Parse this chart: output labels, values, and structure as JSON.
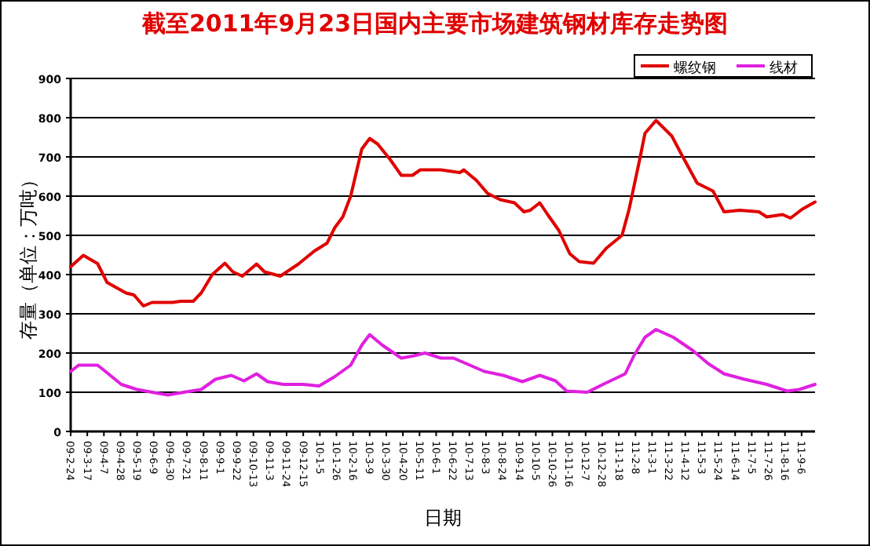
{
  "chart_data": {
    "type": "line",
    "title": "截至2011年9月23日国内主要市场建筑钢材库存走势图",
    "xlabel": "日期",
    "ylabel": "存量（单位：万吨）",
    "xlim": [
      "2009-02-24",
      "2011-09-23"
    ],
    "ylim": [
      0,
      900
    ],
    "yticks": [
      0,
      100,
      200,
      300,
      400,
      500,
      600,
      700,
      800,
      900
    ],
    "xticks": [
      {
        "value": "2009-02-24",
        "label": "09-2-24"
      },
      {
        "value": "2009-03-17",
        "label": "09-3-17"
      },
      {
        "value": "2009-04-07",
        "label": "09-4-7"
      },
      {
        "value": "2009-04-28",
        "label": "09-4-28"
      },
      {
        "value": "2009-05-19",
        "label": "09-5-19"
      },
      {
        "value": "2009-06-09",
        "label": "09-6-9"
      },
      {
        "value": "2009-06-30",
        "label": "09-6-30"
      },
      {
        "value": "2009-07-21",
        "label": "09-7-21"
      },
      {
        "value": "2009-08-11",
        "label": "09-8-11"
      },
      {
        "value": "2009-09-01",
        "label": "09-9-1"
      },
      {
        "value": "2009-09-22",
        "label": "09-9-22"
      },
      {
        "value": "2009-10-13",
        "label": "09-10-13"
      },
      {
        "value": "2009-11-03",
        "label": "09-11-3"
      },
      {
        "value": "2009-11-24",
        "label": "09-11-24"
      },
      {
        "value": "2009-12-15",
        "label": "09-12-15"
      },
      {
        "value": "2010-01-05",
        "label": "10-1-5"
      },
      {
        "value": "2010-01-26",
        "label": "10-1-26"
      },
      {
        "value": "2010-02-16",
        "label": "10-2-16"
      },
      {
        "value": "2010-03-09",
        "label": "10-3-9"
      },
      {
        "value": "2010-03-30",
        "label": "10-3-30"
      },
      {
        "value": "2010-04-20",
        "label": "10-4-20"
      },
      {
        "value": "2010-05-11",
        "label": "10-5-11"
      },
      {
        "value": "2010-06-01",
        "label": "10-6-1"
      },
      {
        "value": "2010-06-22",
        "label": "10-6-22"
      },
      {
        "value": "2010-07-13",
        "label": "10-7-13"
      },
      {
        "value": "2010-08-03",
        "label": "10-8-3"
      },
      {
        "value": "2010-08-24",
        "label": "10-8-24"
      },
      {
        "value": "2010-09-14",
        "label": "10-9-14"
      },
      {
        "value": "2010-10-05",
        "label": "10-10-5"
      },
      {
        "value": "2010-10-26",
        "label": "10-10-26"
      },
      {
        "value": "2010-11-16",
        "label": "10-11-16"
      },
      {
        "value": "2010-12-07",
        "label": "10-12-7"
      },
      {
        "value": "2010-12-28",
        "label": "10-12-28"
      },
      {
        "value": "2011-01-18",
        "label": "11-1-18"
      },
      {
        "value": "2011-02-08",
        "label": "11-2-8"
      },
      {
        "value": "2011-03-01",
        "label": "11-3-1"
      },
      {
        "value": "2011-03-22",
        "label": "11-3-22"
      },
      {
        "value": "2011-04-12",
        "label": "11-4-12"
      },
      {
        "value": "2011-05-03",
        "label": "11-5-3"
      },
      {
        "value": "2011-05-24",
        "label": "11-5-24"
      },
      {
        "value": "2011-06-14",
        "label": "11-6-14"
      },
      {
        "value": "2011-07-05",
        "label": "11-7-5"
      },
      {
        "value": "2011-07-26",
        "label": "11-7-26"
      },
      {
        "value": "2011-08-16",
        "label": "11-8-16"
      },
      {
        "value": "2011-09-06",
        "label": "11-9-6"
      }
    ],
    "grid": "y",
    "legend": "top right",
    "marker": "none",
    "line_style": "solid",
    "series": [
      {
        "name": "螺纹钢",
        "color": "#e00000",
        "x": [
          "2009-02-24",
          "2009-03-12",
          "2009-03-30",
          "2009-04-11",
          "2009-05-05",
          "2009-05-15",
          "2009-05-27",
          "2009-06-07",
          "2009-07-03",
          "2009-07-13",
          "2009-07-29",
          "2009-08-08",
          "2009-08-22",
          "2009-09-07",
          "2009-09-17",
          "2009-09-29",
          "2009-10-17",
          "2009-10-27",
          "2009-11-16",
          "2009-12-09",
          "2009-12-29",
          "2010-01-14",
          "2010-01-24",
          "2010-02-03",
          "2010-02-13",
          "2010-02-27",
          "2010-03-09",
          "2010-03-19",
          "2010-04-04",
          "2010-04-18",
          "2010-05-02",
          "2010-05-12",
          "2010-06-07",
          "2010-07-01",
          "2010-07-06",
          "2010-07-22",
          "2010-08-05",
          "2010-08-21",
          "2010-09-08",
          "2010-09-20",
          "2010-09-28",
          "2010-10-10",
          "2010-10-20",
          "2010-11-03",
          "2010-11-17",
          "2010-11-29",
          "2010-12-17",
          "2011-01-02",
          "2011-01-22",
          "2011-01-31",
          "2011-02-14",
          "2011-02-20",
          "2011-03-06",
          "2011-03-26",
          "2011-04-07",
          "2011-04-27",
          "2011-05-17",
          "2011-05-31",
          "2011-06-20",
          "2011-07-14",
          "2011-07-24",
          "2011-08-13",
          "2011-08-23",
          "2011-09-07",
          "2011-09-23"
        ],
        "values": [
          420,
          449,
          428,
          380,
          353,
          348,
          320,
          329,
          329,
          332,
          332,
          353,
          400,
          429,
          407,
          396,
          427,
          407,
          396,
          427,
          460,
          480,
          520,
          547,
          600,
          720,
          747,
          733,
          693,
          653,
          653,
          667,
          667,
          660,
          667,
          640,
          607,
          591,
          583,
          560,
          564,
          583,
          553,
          513,
          453,
          433,
          429,
          467,
          500,
          567,
          700,
          760,
          793,
          753,
          707,
          633,
          613,
          560,
          564,
          560,
          547,
          553,
          544,
          567,
          585
        ]
      },
      {
        "name": "线材",
        "color": "#e020e0",
        "x": [
          "2009-02-24",
          "2009-03-06",
          "2009-03-30",
          "2009-04-09",
          "2009-04-29",
          "2009-05-19",
          "2009-06-07",
          "2009-06-27",
          "2009-07-17",
          "2009-08-08",
          "2009-08-26",
          "2009-09-15",
          "2009-10-01",
          "2009-10-17",
          "2009-10-31",
          "2009-11-20",
          "2009-12-15",
          "2010-01-04",
          "2010-01-24",
          "2010-02-13",
          "2010-02-27",
          "2010-03-09",
          "2010-03-25",
          "2010-04-18",
          "2010-05-04",
          "2010-05-18",
          "2010-06-07",
          "2010-06-23",
          "2010-07-16",
          "2010-08-01",
          "2010-08-25",
          "2010-09-18",
          "2010-10-10",
          "2010-10-30",
          "2010-11-13",
          "2010-12-09",
          "2010-12-29",
          "2011-01-26",
          "2011-02-06",
          "2011-02-20",
          "2011-03-06",
          "2011-03-28",
          "2011-04-21",
          "2011-05-11",
          "2011-05-31",
          "2011-06-26",
          "2011-07-24",
          "2011-08-19",
          "2011-09-03",
          "2011-09-23"
        ],
        "values": [
          153,
          169,
          169,
          153,
          120,
          107,
          100,
          93,
          100,
          107,
          133,
          143,
          129,
          147,
          127,
          120,
          120,
          116,
          140,
          169,
          220,
          247,
          220,
          187,
          193,
          200,
          187,
          187,
          167,
          153,
          143,
          127,
          143,
          129,
          103,
          100,
          120,
          147,
          193,
          240,
          260,
          240,
          207,
          173,
          147,
          133,
          120,
          103,
          107,
          120
        ]
      }
    ]
  }
}
